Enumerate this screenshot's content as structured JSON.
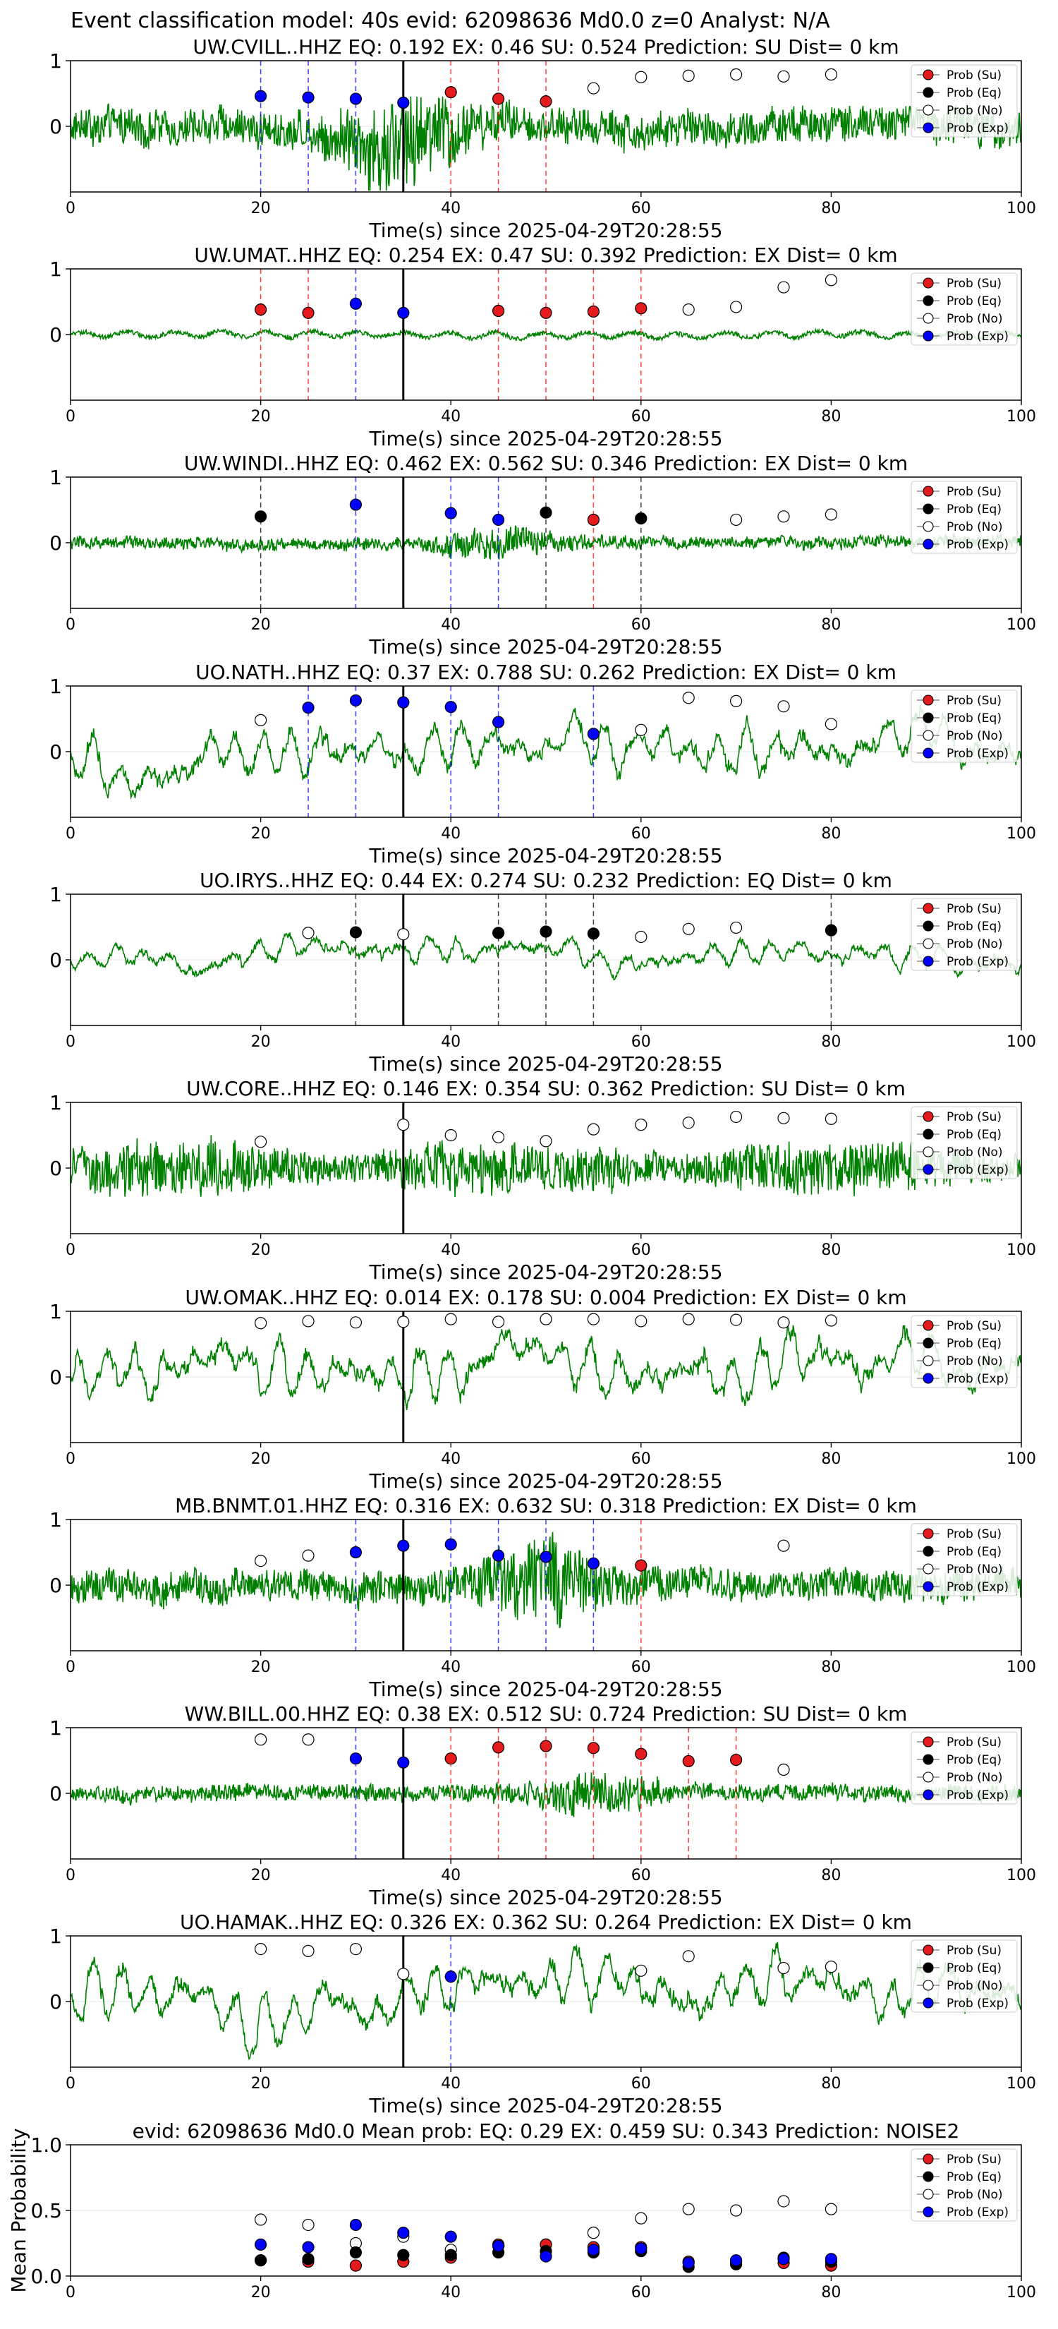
{
  "suptitle": "Event classification model: 40s evid: 62098636 Md0.0 z=0 Analyst: N/A",
  "legend_labels": [
    "Prob (Su)",
    "Prob (Eq)",
    "Prob (No)",
    "Prob (Exp)"
  ],
  "colors": {
    "waveform": "#008000",
    "su": "#e41a1c",
    "eq": "#000000",
    "no": "#ffffff",
    "exp": "#0000ff",
    "su_line": "#ff0000",
    "eq_line": "#000000",
    "exp_line": "#0000ff"
  },
  "chart_data": [
    {
      "type": "line",
      "title": "UW.CVILL..HHZ   EQ: 0.192  EX: 0.46  SU: 0.524   Prediction: SU    Dist= 0 km",
      "xlabel": "Time(s) since 2025-04-29T20:28:55",
      "ylabel": "",
      "xlim": [
        0,
        100
      ],
      "ylim": [
        -1,
        1
      ],
      "xticks": [
        0,
        20,
        40,
        60,
        80,
        100
      ],
      "yticks": [
        0,
        1
      ],
      "amplitude": 0.45,
      "noise_char": "burst",
      "burst_center": 35,
      "event_line": 35,
      "vlines": {
        "su": [
          40,
          45,
          50
        ],
        "eq": [],
        "exp": [
          20,
          25,
          30,
          35
        ]
      },
      "prob_points": {
        "su": [
          [
            40,
            0.52
          ],
          [
            45,
            0.42
          ],
          [
            50,
            0.38
          ]
        ],
        "eq": [],
        "no": [
          [
            55,
            0.58
          ],
          [
            60,
            0.75
          ],
          [
            65,
            0.77
          ],
          [
            70,
            0.79
          ],
          [
            75,
            0.76
          ],
          [
            80,
            0.79
          ]
        ],
        "exp": [
          [
            20,
            0.46
          ],
          [
            25,
            0.44
          ],
          [
            30,
            0.42
          ],
          [
            35,
            0.36
          ]
        ]
      }
    },
    {
      "type": "line",
      "title": "UW.UMAT..HHZ   EQ: 0.254  EX: 0.47  SU: 0.392   Prediction: EX    Dist= 0 km",
      "xlabel": "Time(s) since 2025-04-29T20:28:55",
      "ylabel": "",
      "xlim": [
        0,
        100
      ],
      "ylim": [
        -1,
        1
      ],
      "xticks": [
        0,
        20,
        40,
        60,
        80,
        100
      ],
      "yticks": [
        0,
        1
      ],
      "amplitude": 0.1,
      "noise_char": "quiet",
      "burst_center": 35,
      "event_line": 35,
      "vlines": {
        "su": [
          20,
          25,
          45,
          50,
          55,
          60
        ],
        "eq": [],
        "exp": [
          30,
          35
        ]
      },
      "prob_points": {
        "su": [
          [
            20,
            0.38
          ],
          [
            25,
            0.33
          ],
          [
            45,
            0.36
          ],
          [
            50,
            0.33
          ],
          [
            55,
            0.35
          ],
          [
            60,
            0.4
          ]
        ],
        "eq": [],
        "no": [
          [
            65,
            0.38
          ],
          [
            70,
            0.42
          ],
          [
            75,
            0.72
          ],
          [
            80,
            0.83
          ]
        ],
        "exp": [
          [
            30,
            0.47
          ],
          [
            35,
            0.33
          ]
        ]
      }
    },
    {
      "type": "line",
      "title": "UW.WINDI..HHZ   EQ: 0.462  EX: 0.562  SU: 0.346   Prediction: EX    Dist= 0 km",
      "xlabel": "Time(s) since 2025-04-29T20:28:55",
      "ylabel": "",
      "xlim": [
        0,
        100
      ],
      "ylim": [
        -1,
        1
      ],
      "xticks": [
        0,
        20,
        40,
        60,
        80,
        100
      ],
      "yticks": [
        0,
        1
      ],
      "amplitude": 0.15,
      "noise_char": "burst",
      "burst_center": 45,
      "event_line": 35,
      "vlines": {
        "su": [
          55
        ],
        "eq": [
          20,
          50,
          60
        ],
        "exp": [
          30,
          40,
          45
        ]
      },
      "prob_points": {
        "su": [
          [
            55,
            0.35
          ]
        ],
        "eq": [
          [
            20,
            0.4
          ],
          [
            50,
            0.46
          ],
          [
            60,
            0.37
          ]
        ],
        "no": [
          [
            70,
            0.35
          ],
          [
            75,
            0.4
          ],
          [
            80,
            0.43
          ]
        ],
        "exp": [
          [
            30,
            0.58
          ],
          [
            40,
            0.45
          ],
          [
            45,
            0.35
          ]
        ]
      }
    },
    {
      "type": "line",
      "title": "UO.NATH..HHZ   EQ: 0.37  EX: 0.788  SU: 0.262   Prediction: EX    Dist= 0 km",
      "xlabel": "Time(s) since 2025-04-29T20:28:55",
      "ylabel": "",
      "xlim": [
        0,
        100
      ],
      "ylim": [
        -1,
        1
      ],
      "xticks": [
        0,
        20,
        40,
        60,
        80,
        100
      ],
      "yticks": [
        0,
        1
      ],
      "amplitude": 0.55,
      "noise_char": "wavy",
      "burst_center": 45,
      "event_line": 35,
      "vlines": {
        "su": [],
        "eq": [],
        "exp": [
          25,
          30,
          35,
          40,
          45,
          55
        ]
      },
      "prob_points": {
        "su": [],
        "eq": [],
        "no": [
          [
            20,
            0.48
          ],
          [
            60,
            0.33
          ],
          [
            65,
            0.82
          ],
          [
            70,
            0.77
          ],
          [
            75,
            0.69
          ],
          [
            80,
            0.42
          ]
        ],
        "exp": [
          [
            25,
            0.67
          ],
          [
            30,
            0.78
          ],
          [
            35,
            0.75
          ],
          [
            40,
            0.68
          ],
          [
            45,
            0.45
          ],
          [
            55,
            0.27
          ]
        ]
      }
    },
    {
      "type": "line",
      "title": "UO.IRYS..HHZ   EQ: 0.44  EX: 0.274  SU: 0.232   Prediction: EQ    Dist= 0 km",
      "xlabel": "Time(s) since 2025-04-29T20:28:55",
      "ylabel": "",
      "xlim": [
        0,
        100
      ],
      "ylim": [
        -1,
        1
      ],
      "xticks": [
        0,
        20,
        40,
        60,
        80,
        100
      ],
      "yticks": [
        0,
        1
      ],
      "amplitude": 0.3,
      "noise_char": "wavy",
      "burst_center": 50,
      "event_line": 35,
      "vlines": {
        "su": [],
        "eq": [
          30,
          45,
          50,
          55,
          80
        ],
        "exp": []
      },
      "prob_points": {
        "su": [],
        "eq": [
          [
            30,
            0.42
          ],
          [
            45,
            0.41
          ],
          [
            50,
            0.43
          ],
          [
            55,
            0.4
          ],
          [
            80,
            0.45
          ]
        ],
        "no": [
          [
            25,
            0.41
          ],
          [
            35,
            0.39
          ],
          [
            60,
            0.35
          ],
          [
            65,
            0.47
          ],
          [
            70,
            0.49
          ]
        ],
        "exp": []
      }
    },
    {
      "type": "line",
      "title": "UW.CORE..HHZ   EQ: 0.146  EX: 0.354  SU: 0.362   Prediction: SU    Dist= 0 km",
      "xlabel": "Time(s) since 2025-04-29T20:28:55",
      "ylabel": "",
      "xlim": [
        0,
        100
      ],
      "ylim": [
        -1,
        1
      ],
      "xticks": [
        0,
        20,
        40,
        60,
        80,
        100
      ],
      "yticks": [
        0,
        1
      ],
      "amplitude": 0.55,
      "noise_char": "busy",
      "burst_center": 30,
      "event_line": 35,
      "vlines": {
        "su": [],
        "eq": [],
        "exp": []
      },
      "prob_points": {
        "su": [],
        "eq": [],
        "no": [
          [
            20,
            0.4
          ],
          [
            35,
            0.66
          ],
          [
            40,
            0.5
          ],
          [
            45,
            0.47
          ],
          [
            50,
            0.41
          ],
          [
            55,
            0.59
          ],
          [
            60,
            0.66
          ],
          [
            65,
            0.69
          ],
          [
            70,
            0.78
          ],
          [
            75,
            0.76
          ],
          [
            80,
            0.75
          ]
        ],
        "exp": []
      }
    },
    {
      "type": "line",
      "title": "UW.OMAK..HHZ   EQ: 0.014  EX: 0.178  SU: 0.004   Prediction: EX    Dist= 0 km",
      "xlabel": "Time(s) since 2025-04-29T20:28:55",
      "ylabel": "",
      "xlim": [
        0,
        100
      ],
      "ylim": [
        -1,
        1
      ],
      "xticks": [
        0,
        20,
        40,
        60,
        80,
        100
      ],
      "yticks": [
        0,
        1
      ],
      "amplitude": 0.6,
      "noise_char": "wavy",
      "burst_center": 50,
      "event_line": 35,
      "vlines": {
        "su": [],
        "eq": [],
        "exp": []
      },
      "prob_points": {
        "su": [],
        "eq": [],
        "no": [
          [
            20,
            0.82
          ],
          [
            25,
            0.85
          ],
          [
            30,
            0.83
          ],
          [
            35,
            0.84
          ],
          [
            40,
            0.88
          ],
          [
            45,
            0.84
          ],
          [
            50,
            0.88
          ],
          [
            55,
            0.88
          ],
          [
            60,
            0.85
          ],
          [
            65,
            0.88
          ],
          [
            70,
            0.87
          ],
          [
            75,
            0.83
          ],
          [
            80,
            0.86
          ]
        ],
        "exp": []
      }
    },
    {
      "type": "line",
      "title": "MB.BNMT.01.HHZ   EQ: 0.316  EX: 0.632  SU: 0.318   Prediction: EX    Dist= 0 km",
      "xlabel": "Time(s) since 2025-04-29T20:28:55",
      "ylabel": "",
      "xlim": [
        0,
        100
      ],
      "ylim": [
        -1,
        1
      ],
      "xticks": [
        0,
        20,
        40,
        60,
        80,
        100
      ],
      "yticks": [
        0,
        1
      ],
      "amplitude": 0.4,
      "noise_char": "burst",
      "burst_center": 50,
      "event_line": 35,
      "vlines": {
        "su": [
          60
        ],
        "eq": [],
        "exp": [
          30,
          35,
          40,
          45,
          50,
          55
        ]
      },
      "prob_points": {
        "su": [
          [
            60,
            0.3
          ]
        ],
        "eq": [],
        "no": [
          [
            20,
            0.37
          ],
          [
            25,
            0.45
          ],
          [
            75,
            0.6
          ]
        ],
        "exp": [
          [
            30,
            0.5
          ],
          [
            35,
            0.6
          ],
          [
            40,
            0.62
          ],
          [
            45,
            0.45
          ],
          [
            50,
            0.43
          ],
          [
            55,
            0.33
          ]
        ]
      }
    },
    {
      "type": "line",
      "title": "WW.BILL.00.HHZ   EQ: 0.38  EX: 0.512  SU: 0.724   Prediction: SU    Dist= 0 km",
      "xlabel": "Time(s) since 2025-04-29T20:28:55",
      "ylabel": "",
      "xlim": [
        0,
        100
      ],
      "ylim": [
        -1,
        1
      ],
      "xticks": [
        0,
        20,
        40,
        60,
        80,
        100
      ],
      "yticks": [
        0,
        1
      ],
      "amplitude": 0.2,
      "noise_char": "burst",
      "burst_center": 55,
      "event_line": 35,
      "vlines": {
        "su": [
          40,
          45,
          50,
          55,
          60,
          65,
          70
        ],
        "eq": [],
        "exp": [
          30,
          35
        ]
      },
      "prob_points": {
        "su": [
          [
            40,
            0.53
          ],
          [
            45,
            0.7
          ],
          [
            50,
            0.72
          ],
          [
            55,
            0.69
          ],
          [
            60,
            0.6
          ],
          [
            65,
            0.49
          ],
          [
            70,
            0.51
          ]
        ],
        "eq": [],
        "no": [
          [
            20,
            0.82
          ],
          [
            25,
            0.82
          ],
          [
            75,
            0.36
          ]
        ],
        "exp": [
          [
            30,
            0.53
          ],
          [
            35,
            0.47
          ]
        ]
      }
    },
    {
      "type": "line",
      "title": "UO.HAMAK..HHZ   EQ: 0.326  EX: 0.362  SU: 0.264   Prediction: EX    Dist= 0 km",
      "xlabel": "Time(s) since 2025-04-29T20:28:55",
      "ylabel": "",
      "xlim": [
        0,
        100
      ],
      "ylim": [
        -1,
        1
      ],
      "xticks": [
        0,
        20,
        40,
        60,
        80,
        100
      ],
      "yticks": [
        0,
        1
      ],
      "amplitude": 0.6,
      "noise_char": "wavy",
      "burst_center": 65,
      "event_line": 35,
      "vlines": {
        "su": [],
        "eq": [],
        "exp": [
          40
        ]
      },
      "prob_points": {
        "su": [],
        "eq": [],
        "no": [
          [
            20,
            0.8
          ],
          [
            25,
            0.77
          ],
          [
            30,
            0.8
          ],
          [
            35,
            0.42
          ],
          [
            60,
            0.47
          ],
          [
            65,
            0.69
          ],
          [
            75,
            0.51
          ],
          [
            80,
            0.53
          ]
        ],
        "exp": [
          [
            40,
            0.38
          ]
        ]
      }
    },
    {
      "type": "scatter",
      "title": "evid: 62098636  Md0.0   Mean prob:   EQ: 0.29  EX: 0.459  SU: 0.343   Prediction: NOISE2",
      "xlabel": "",
      "ylabel": "Mean Probability",
      "xlim": [
        0,
        100
      ],
      "ylim": [
        0,
        1
      ],
      "xticks": [
        0,
        20,
        40,
        60,
        80,
        100
      ],
      "yticks": [
        0.0,
        0.5,
        1.0
      ],
      "ytick_labels": [
        "0.0",
        "0.5",
        "1.0"
      ],
      "event_line": null,
      "vlines": {
        "su": [],
        "eq": [],
        "exp": []
      },
      "prob_points": {
        "su": [
          [
            20,
            0.12
          ],
          [
            25,
            0.11
          ],
          [
            30,
            0.08
          ],
          [
            35,
            0.11
          ],
          [
            40,
            0.14
          ],
          [
            45,
            0.24
          ],
          [
            50,
            0.24
          ],
          [
            55,
            0.22
          ],
          [
            60,
            0.22
          ],
          [
            65,
            0.11
          ],
          [
            70,
            0.11
          ],
          [
            75,
            0.1
          ],
          [
            80,
            0.08
          ]
        ],
        "eq": [
          [
            20,
            0.12
          ],
          [
            25,
            0.13
          ],
          [
            30,
            0.18
          ],
          [
            35,
            0.16
          ],
          [
            40,
            0.16
          ],
          [
            45,
            0.18
          ],
          [
            50,
            0.19
          ],
          [
            55,
            0.18
          ],
          [
            60,
            0.19
          ],
          [
            65,
            0.07
          ],
          [
            70,
            0.09
          ],
          [
            75,
            0.14
          ],
          [
            80,
            0.11
          ]
        ],
        "no": [
          [
            20,
            0.43
          ],
          [
            25,
            0.39
          ],
          [
            30,
            0.25
          ],
          [
            35,
            0.3
          ],
          [
            40,
            0.2
          ],
          [
            45,
            0.23
          ],
          [
            50,
            0.24
          ],
          [
            55,
            0.33
          ],
          [
            60,
            0.44
          ],
          [
            65,
            0.51
          ],
          [
            70,
            0.5
          ],
          [
            75,
            0.57
          ],
          [
            80,
            0.51
          ]
        ],
        "exp": [
          [
            20,
            0.24
          ],
          [
            25,
            0.22
          ],
          [
            30,
            0.39
          ],
          [
            35,
            0.33
          ],
          [
            40,
            0.3
          ],
          [
            45,
            0.23
          ],
          [
            50,
            0.15
          ],
          [
            55,
            0.2
          ],
          [
            60,
            0.21
          ],
          [
            65,
            0.1
          ],
          [
            70,
            0.12
          ],
          [
            75,
            0.13
          ],
          [
            80,
            0.13
          ]
        ]
      }
    }
  ]
}
